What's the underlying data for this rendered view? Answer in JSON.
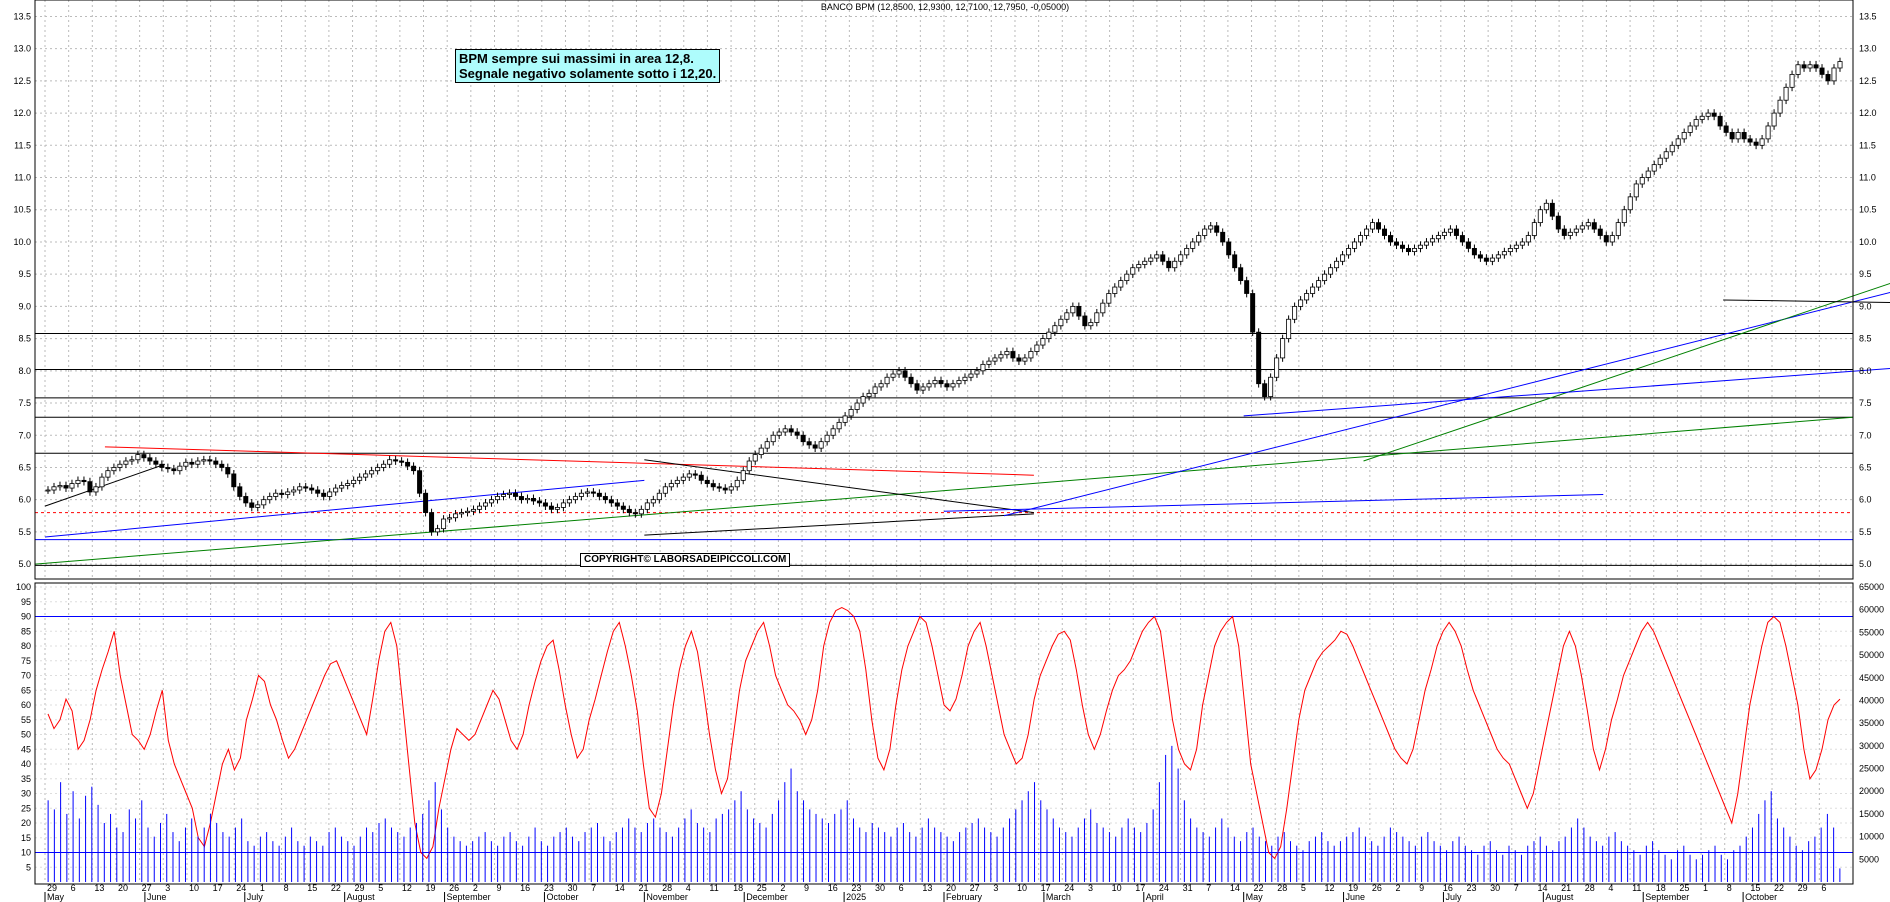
{
  "chart_data": [
    {
      "type": "candlestick",
      "title": "BANCO BPM (12,8500, 12,9300, 12,7100, 12,7950, -0,05000)",
      "ylim": [
        4.8,
        13.6
      ],
      "y_ticks": [
        "5.0",
        "5.5",
        "6.0",
        "6.5",
        "7.0",
        "7.5",
        "8.0",
        "8.5",
        "9.0",
        "9.5",
        "10.0",
        "10.5",
        "11.0",
        "11.5",
        "12.0",
        "12.5",
        "13.0",
        "13.5"
      ],
      "grid": true,
      "series": [
        {
          "close": [
            6.15,
            6.2,
            6.22,
            6.18,
            6.25,
            6.3,
            6.28,
            6.12,
            6.2,
            6.35,
            6.45,
            6.5,
            6.55,
            6.6,
            6.62,
            6.7,
            6.65,
            6.6,
            6.55,
            6.5,
            6.48,
            6.45,
            6.52,
            6.58,
            6.55,
            6.6,
            6.62,
            6.6,
            6.55,
            6.5,
            6.4,
            6.2,
            6.05,
            5.95,
            5.88,
            5.92,
            6.0,
            6.05,
            6.1,
            6.08,
            6.12,
            6.15,
            6.2,
            6.18,
            6.15,
            6.1,
            6.05,
            6.12,
            6.18,
            6.22,
            6.25,
            6.3,
            6.35,
            6.4,
            6.45,
            6.5,
            6.55,
            6.62,
            6.6,
            6.58,
            6.52,
            6.45,
            6.1,
            5.8,
            5.5,
            5.55,
            5.7,
            5.72,
            5.78,
            5.8,
            5.82,
            5.85,
            5.9,
            5.95,
            6.0,
            6.05,
            6.08,
            6.1,
            6.05,
            6.0,
            6.02,
            5.98,
            5.95,
            5.9,
            5.85,
            5.88,
            5.95,
            6.0,
            6.05,
            6.1,
            6.12,
            6.1,
            6.05,
            6.0,
            5.95,
            5.9,
            5.85,
            5.8,
            5.78,
            5.85,
            5.95,
            6.0,
            6.1,
            6.2,
            6.25,
            6.3,
            6.35,
            6.4,
            6.38,
            6.3,
            6.25,
            6.2,
            6.18,
            6.15,
            6.2,
            6.3,
            6.45,
            6.6,
            6.7,
            6.8,
            6.9,
            7.0,
            7.05,
            7.1,
            7.05,
            7.0,
            6.9,
            6.85,
            6.8,
            6.9,
            7.0,
            7.1,
            7.2,
            7.3,
            7.4,
            7.5,
            7.6,
            7.65,
            7.75,
            7.8,
            7.9,
            7.95,
            8.0,
            7.9,
            7.8,
            7.7,
            7.75,
            7.8,
            7.85,
            7.8,
            7.75,
            7.8,
            7.85,
            7.9,
            7.95,
            8.0,
            8.1,
            8.15,
            8.2,
            8.25,
            8.3,
            8.2,
            8.15,
            8.2,
            8.3,
            8.4,
            8.5,
            8.6,
            8.7,
            8.8,
            8.9,
            9.0,
            8.85,
            8.7,
            8.75,
            8.9,
            9.05,
            9.2,
            9.3,
            9.4,
            9.5,
            9.6,
            9.65,
            9.7,
            9.75,
            9.8,
            9.7,
            9.6,
            9.7,
            9.8,
            9.9,
            10.0,
            10.1,
            10.2,
            10.25,
            10.15,
            10.0,
            9.8,
            9.6,
            9.4,
            9.2,
            8.6,
            7.8,
            7.6,
            7.9,
            8.2,
            8.5,
            8.8,
            9.0,
            9.1,
            9.2,
            9.3,
            9.4,
            9.5,
            9.6,
            9.7,
            9.8,
            9.9,
            10.0,
            10.1,
            10.2,
            10.3,
            10.2,
            10.1,
            10.0,
            9.95,
            9.9,
            9.85,
            9.9,
            9.95,
            10.0,
            10.05,
            10.1,
            10.15,
            10.2,
            10.1,
            10.0,
            9.9,
            9.8,
            9.75,
            9.7,
            9.75,
            9.8,
            9.85,
            9.9,
            9.95,
            10.0,
            10.1,
            10.3,
            10.5,
            10.6,
            10.4,
            10.2,
            10.1,
            10.15,
            10.2,
            10.25,
            10.3,
            10.2,
            10.1,
            10.0,
            10.1,
            10.3,
            10.5,
            10.7,
            10.9,
            11.0,
            11.1,
            11.2,
            11.3,
            11.4,
            11.5,
            11.6,
            11.7,
            11.8,
            11.9,
            11.95,
            12.0,
            11.95,
            11.8,
            11.7,
            11.6,
            11.7,
            11.6,
            11.55,
            11.5,
            11.6,
            11.8,
            12.0,
            12.2,
            12.4,
            12.6,
            12.75,
            12.7,
            12.75,
            12.7,
            12.6,
            12.5,
            12.7,
            12.8
          ],
          "color": "#000000"
        }
      ],
      "x_labels": [
        "29",
        "6",
        "13",
        "20",
        "27",
        "3",
        "10",
        "17",
        "24",
        "1",
        "8",
        "15",
        "22",
        "29",
        "5",
        "12",
        "19",
        "26",
        "2",
        "9",
        "16",
        "23",
        "30",
        "7",
        "14",
        "21",
        "28",
        "4",
        "11",
        "18",
        "25",
        "2",
        "9",
        "16",
        "23",
        "30",
        "6",
        "13",
        "20",
        "27",
        "3",
        "10",
        "17",
        "24",
        "3",
        "10",
        "17",
        "24",
        "31",
        "7",
        "14",
        "22",
        "28",
        "5",
        "12",
        "19",
        "26",
        "2",
        "9",
        "16",
        "23",
        "30",
        "7",
        "14",
        "21",
        "28",
        "4",
        "11",
        "18",
        "25",
        "1",
        "8",
        "15",
        "22",
        "29",
        "6"
      ],
      "x_major_labels": [
        "May",
        "June",
        "July",
        "August",
        "September",
        "October",
        "November",
        "December",
        "2025",
        "February",
        "March",
        "April",
        "May",
        "June",
        "July",
        "August",
        "September",
        "October"
      ],
      "annotations": [
        "BPM sempre sui massimi in area 12,8.",
        "Segnale negativo solamente sotto i 12,20."
      ],
      "copyright": "COPYRIGHT© LABORSADEIPICCOLI.COM"
    },
    {
      "type": "line",
      "ylim": [
        0,
        100
      ],
      "y_ticks": [
        "5",
        "10",
        "15",
        "20",
        "25",
        "30",
        "35",
        "40",
        "45",
        "50",
        "55",
        "60",
        "65",
        "70",
        "75",
        "80",
        "85",
        "90",
        "95",
        "100"
      ],
      "reference_lines": [
        90,
        10
      ],
      "series": [
        {
          "values": [
            57,
            52,
            55,
            62,
            58,
            45,
            48,
            55,
            65,
            72,
            78,
            85,
            70,
            60,
            50,
            48,
            45,
            50,
            58,
            65,
            48,
            40,
            35,
            30,
            25,
            15,
            12,
            20,
            30,
            40,
            45,
            38,
            42,
            55,
            62,
            70,
            68,
            60,
            55,
            48,
            42,
            45,
            50,
            55,
            60,
            65,
            70,
            74,
            75,
            70,
            65,
            60,
            55,
            50,
            62,
            75,
            85,
            88,
            80,
            60,
            40,
            20,
            10,
            8,
            12,
            25,
            35,
            45,
            52,
            50,
            48,
            50,
            55,
            60,
            65,
            62,
            55,
            48,
            45,
            50,
            60,
            68,
            75,
            80,
            82,
            72,
            60,
            50,
            42,
            45,
            55,
            62,
            70,
            78,
            85,
            88,
            80,
            70,
            58,
            40,
            25,
            22,
            30,
            45,
            60,
            72,
            80,
            85,
            78,
            65,
            50,
            38,
            30,
            35,
            50,
            65,
            75,
            80,
            85,
            88,
            80,
            70,
            65,
            60,
            58,
            55,
            50,
            55,
            65,
            80,
            88,
            92,
            93,
            92,
            90,
            85,
            72,
            55,
            42,
            38,
            45,
            60,
            72,
            80,
            85,
            90,
            88,
            80,
            70,
            60,
            58,
            62,
            70,
            80,
            85,
            88,
            80,
            70,
            60,
            50,
            45,
            40,
            42,
            50,
            62,
            70,
            75,
            80,
            84,
            85,
            82,
            72,
            60,
            50,
            45,
            50,
            58,
            65,
            70,
            72,
            75,
            80,
            85,
            88,
            90,
            85,
            70,
            55,
            45,
            40,
            38,
            45,
            60,
            70,
            80,
            85,
            88,
            90,
            80,
            60,
            40,
            30,
            20,
            10,
            8,
            12,
            25,
            40,
            55,
            65,
            70,
            75,
            78,
            80,
            82,
            85,
            84,
            80,
            75,
            70,
            65,
            60,
            55,
            50,
            45,
            42,
            40,
            45,
            55,
            65,
            72,
            80,
            85,
            88,
            85,
            80,
            72,
            65,
            60,
            55,
            50,
            45,
            42,
            40,
            35,
            30,
            25,
            30,
            40,
            50,
            60,
            70,
            80,
            85,
            80,
            70,
            58,
            45,
            38,
            45,
            55,
            62,
            70,
            75,
            80,
            85,
            88,
            85,
            80,
            75,
            70,
            65,
            60,
            55,
            50,
            45,
            40,
            35,
            30,
            25,
            20,
            30,
            45,
            60,
            70,
            80,
            88,
            90,
            88,
            80,
            70,
            60,
            45,
            35,
            38,
            45,
            55,
            60,
            62
          ],
          "color": "#ff0000"
        },
        {
          "name": "volume",
          "values": [
            18000,
            16000,
            22000,
            15000,
            20000,
            14000,
            19000,
            21000,
            17000,
            13000,
            15000,
            12000,
            11000,
            16000,
            14000,
            18000,
            12000,
            10000,
            13000,
            15000,
            11000,
            9000,
            12000,
            14000,
            10000,
            12000,
            15000,
            13000,
            11000,
            10000,
            12000,
            14000,
            9000,
            8000,
            10000,
            11000,
            9000,
            8000,
            10000,
            12000,
            9000,
            8000,
            10000,
            9000,
            8000,
            11000,
            12000,
            10000,
            9000,
            8000,
            10000,
            12000,
            11000,
            13000,
            14000,
            12000,
            11000,
            10000,
            12000,
            13000,
            15000,
            18000,
            22000,
            16000,
            12000,
            10000,
            9000,
            8000,
            9000,
            10000,
            11000,
            9000,
            8000,
            10000,
            11000,
            9000,
            8000,
            10000,
            12000,
            9000,
            8000,
            10000,
            11000,
            12000,
            10000,
            9000,
            11000,
            12000,
            13000,
            10000,
            9000,
            11000,
            12000,
            14000,
            12000,
            11000,
            13000,
            14000,
            12000,
            11000,
            10000,
            12000,
            14000,
            16000,
            13000,
            12000,
            11000,
            14000,
            15000,
            16000,
            18000,
            20000,
            16000,
            14000,
            13000,
            12000,
            15000,
            18000,
            22000,
            25000,
            20000,
            18000,
            16000,
            15000,
            14000,
            13000,
            15000,
            16000,
            18000,
            14000,
            12000,
            11000,
            13000,
            12000,
            11000,
            10000,
            12000,
            13000,
            11000,
            10000,
            12000,
            14000,
            12000,
            11000,
            10000,
            9000,
            11000,
            12000,
            13000,
            14000,
            12000,
            11000,
            10000,
            12000,
            14000,
            16000,
            18000,
            20000,
            22000,
            18000,
            16000,
            14000,
            12000,
            11000,
            10000,
            12000,
            14000,
            16000,
            13000,
            12000,
            11000,
            10000,
            12000,
            14000,
            12000,
            11000,
            13000,
            16000,
            22000,
            28000,
            30000,
            25000,
            18000,
            14000,
            12000,
            11000,
            10000,
            12000,
            14000,
            12000,
            10000,
            9000,
            11000,
            12000,
            10000,
            9000,
            8000,
            10000,
            11000,
            9000,
            8000,
            7000,
            9000,
            10000,
            11000,
            9000,
            8000,
            9000,
            10000,
            11000,
            12000,
            10000,
            9000,
            8000,
            10000,
            12000,
            11000,
            10000,
            9000,
            8000,
            10000,
            11000,
            9000,
            8000,
            7000,
            9000,
            10000,
            8000,
            7000,
            6000,
            8000,
            9000,
            7000,
            6000,
            8000,
            7000,
            6000,
            8000,
            9000,
            10000,
            8000,
            7000,
            9000,
            10000,
            12000,
            14000,
            12000,
            10000,
            9000,
            8000,
            10000,
            11000,
            9000,
            8000,
            7000,
            6000,
            8000,
            9000,
            7000,
            6000,
            5000,
            7000,
            8000,
            6000,
            5000,
            6000,
            7000,
            8000,
            6000,
            5000,
            7000,
            8000,
            10000,
            12000,
            15000,
            18000,
            20000,
            14000,
            12000,
            10000,
            8000,
            7000,
            9000,
            10000,
            12000,
            15000,
            12000,
            3000
          ],
          "color": "#0000ff"
        }
      ],
      "y2lim": [
        0,
        65000
      ],
      "y2_ticks": [
        "5000",
        "10000",
        "15000",
        "20000",
        "25000",
        "30000",
        "35000",
        "40000",
        "45000",
        "50000",
        "55000",
        "60000",
        "65000"
      ]
    }
  ]
}
